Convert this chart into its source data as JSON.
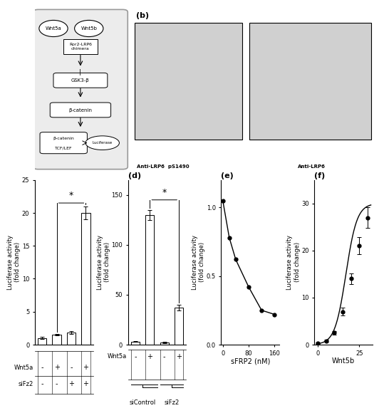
{
  "panel_c": {
    "values": [
      1.0,
      1.5,
      1.8,
      20.0
    ],
    "errors": [
      0.15,
      0.15,
      0.2,
      1.0
    ],
    "row1": [
      "-",
      "+",
      "-",
      "+"
    ],
    "row2": [
      "-",
      "-",
      "+",
      "+"
    ],
    "row1_label": "Wnt5a",
    "row2_label": "siFz2",
    "ylabel": "Luciferase activity\n(fold change)",
    "ylim": [
      0,
      25
    ],
    "yticks": [
      0,
      5,
      10,
      15,
      20,
      25
    ],
    "bar_color": "#ffffff",
    "bar_edgecolor": "#000000"
  },
  "panel_d": {
    "values": [
      3.0,
      130.0,
      2.0,
      37.0
    ],
    "errors": [
      0.5,
      5.0,
      0.5,
      3.0
    ],
    "row1": [
      "-",
      "+",
      "-",
      "+"
    ],
    "row1_label": "Wnt5a",
    "ylabel": "Luciferase activity\n(fold change)",
    "ylim": [
      0,
      165
    ],
    "yticks": [
      0,
      50,
      100,
      150
    ],
    "bar_color": "#ffffff",
    "bar_edgecolor": "#000000",
    "panel_label": "(d)"
  },
  "panel_e": {
    "x": [
      0,
      20,
      40,
      80,
      120,
      160
    ],
    "y": [
      1.05,
      0.78,
      0.62,
      0.42,
      0.25,
      0.22
    ],
    "xlabel": "sFRP2 (nM)",
    "ylabel": "Luciferase activity\n(fold change)",
    "xlim": [
      -5,
      175
    ],
    "ylim": [
      0.0,
      1.2
    ],
    "xticks": [
      0,
      80,
      160
    ],
    "yticks": [
      0.0,
      0.5,
      1.0
    ],
    "panel_label": "(e)"
  },
  "panel_f": {
    "x": [
      0,
      5,
      10,
      15,
      20,
      25,
      30
    ],
    "y": [
      0.3,
      0.8,
      2.5,
      7.0,
      14.0,
      21.0,
      27.0
    ],
    "errors": [
      0.15,
      0.2,
      0.4,
      0.8,
      1.2,
      1.8,
      2.2
    ],
    "xlabel": "Wnt5b",
    "ylabel": "Luciferase activity\n(fold change)",
    "xlim": [
      -2,
      33
    ],
    "ylim": [
      0,
      35
    ],
    "xticks": [
      0,
      25
    ],
    "yticks": [
      0,
      10,
      20,
      30
    ],
    "panel_label": "(f)"
  },
  "figure_bg": "#ffffff",
  "font_size": 7
}
